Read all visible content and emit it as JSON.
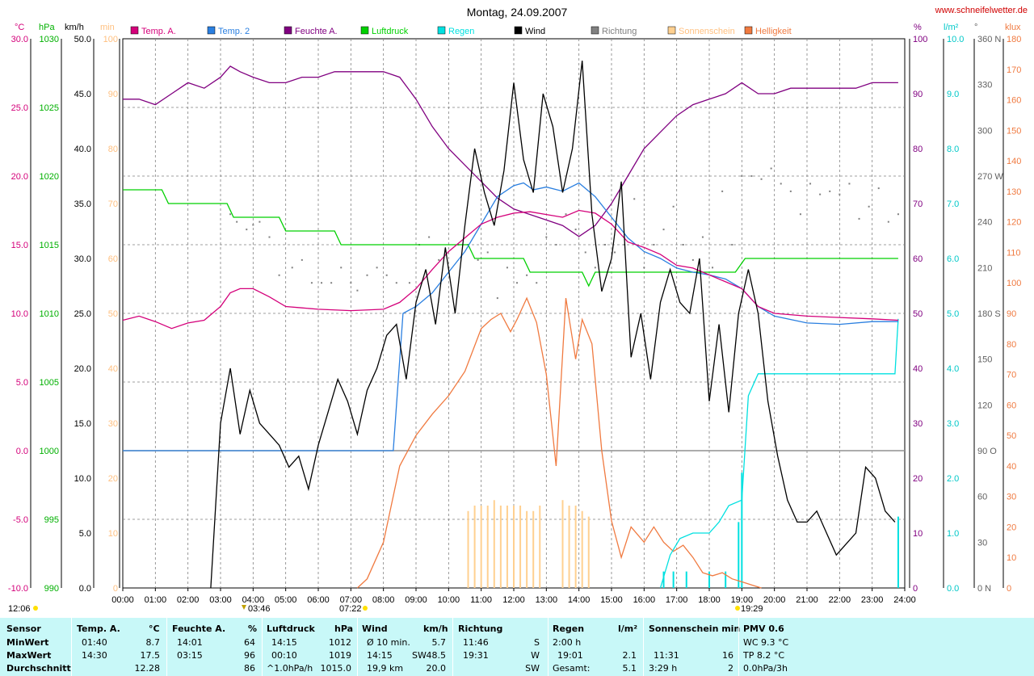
{
  "header": {
    "title": "Montag, 24.09.2007",
    "url": "www.schneifelwetter.de"
  },
  "axis_units": {
    "temp": "°C",
    "press": "hPa",
    "wind": "km/h",
    "min": "min",
    "pct": "%",
    "rain": "l/m²",
    "dir": "°",
    "lux": "klux"
  },
  "legend": [
    {
      "label": "Temp. A.",
      "color": "#d4007a"
    },
    {
      "label": "Temp. 2",
      "color": "#2a7fe0"
    },
    {
      "label": "Feuchte A.",
      "color": "#800080"
    },
    {
      "label": "Luftdruck",
      "color": "#00d000"
    },
    {
      "label": "Regen",
      "color": "#00e0e0"
    },
    {
      "label": "Wind",
      "color": "#000000"
    },
    {
      "label": "Richtung",
      "color": "#808080"
    },
    {
      "label": "Sonnenschein",
      "color": "#ffd090"
    },
    {
      "label": "Helligkeit",
      "color": "#f07a40"
    }
  ],
  "chart_data": {
    "type": "line",
    "title": "Montag, 24.09.2007",
    "x_ticks": [
      "00:00",
      "01:00",
      "02:00",
      "03:00",
      "04:00",
      "05:00",
      "06:00",
      "07:00",
      "08:00",
      "09:00",
      "10:00",
      "11:00",
      "12:00",
      "13:00",
      "14:00",
      "15:00",
      "16:00",
      "17:00",
      "18:00",
      "19:00",
      "20:00",
      "21:00",
      "22:00",
      "23:00",
      "24:00"
    ],
    "axes": {
      "temp": {
        "unit": "°C",
        "range": [
          -10,
          30
        ],
        "ticks": [
          "30.0",
          "25.0",
          "20.0",
          "15.0",
          "10.0",
          "5.0",
          "0.0",
          "-5.0",
          "-10.0"
        ]
      },
      "press": {
        "unit": "hPa",
        "range": [
          990,
          1030
        ],
        "ticks": [
          "1030",
          "1025",
          "1020",
          "1015",
          "1010",
          "1005",
          "1000",
          "995",
          "990"
        ]
      },
      "wind": {
        "unit": "km/h",
        "range": [
          0,
          50
        ],
        "ticks": [
          "50.0",
          "45.0",
          "40.0",
          "35.0",
          "30.0",
          "25.0",
          "20.0",
          "15.0",
          "10.0",
          "5.0",
          "0.0"
        ]
      },
      "minutes": {
        "unit": "min",
        "range": [
          0,
          100
        ],
        "ticks": [
          "100",
          "90",
          "80",
          "70",
          "60",
          "50",
          "40",
          "30",
          "20",
          "10",
          "0"
        ]
      },
      "humidity": {
        "unit": "%",
        "range": [
          0,
          100
        ],
        "ticks": [
          "100",
          "90",
          "80",
          "70",
          "60",
          "50",
          "40",
          "30",
          "20",
          "10",
          "0"
        ]
      },
      "rain": {
        "unit": "l/m²",
        "range": [
          0,
          10
        ],
        "ticks": [
          "10.0",
          "9.0",
          "8.0",
          "7.0",
          "6.0",
          "5.0",
          "4.0",
          "3.0",
          "2.0",
          "1.0",
          "0.0"
        ]
      },
      "direction": {
        "unit": "°",
        "range": [
          0,
          360
        ],
        "ticks": [
          "360 N",
          "330",
          "300",
          "270 W",
          "240",
          "210",
          "180 S",
          "150",
          "120",
          "90 O",
          "60",
          "30",
          "0 N"
        ]
      },
      "lux": {
        "unit": "klux",
        "range": [
          0,
          180
        ],
        "ticks": [
          "180",
          "170",
          "160",
          "150",
          "140",
          "130",
          "120",
          "110",
          "100",
          "90",
          "80",
          "70",
          "60",
          "50",
          "40",
          "30",
          "20",
          "10",
          "0"
        ]
      }
    },
    "series": [
      {
        "name": "Temp. A.",
        "axis": "temp",
        "color": "#d4007a",
        "x": [
          0,
          0.5,
          1,
          1.5,
          2,
          2.5,
          3,
          3.3,
          3.6,
          4,
          4.5,
          5,
          5.5,
          6,
          7,
          8,
          8.5,
          9,
          9.5,
          10,
          10.5,
          11,
          11.5,
          12,
          12.5,
          13,
          13.5,
          14,
          14.5,
          15,
          15.5,
          16,
          16.5,
          17,
          17.5,
          18,
          18.5,
          19,
          19.5,
          20,
          21,
          22,
          23,
          23.8
        ],
        "y": [
          9.5,
          9.8,
          9.4,
          8.9,
          9.3,
          9.5,
          10.5,
          11.5,
          11.8,
          11.8,
          11.2,
          10.5,
          10.4,
          10.3,
          10.2,
          10.3,
          10.8,
          11.8,
          13.2,
          14.5,
          15.5,
          16.5,
          17.0,
          17.3,
          17.4,
          17.2,
          17.0,
          17.5,
          17.3,
          16.5,
          15.2,
          14.8,
          14.3,
          13.5,
          13.3,
          12.8,
          12.3,
          11.8,
          10.5,
          10.0,
          9.8,
          9.7,
          9.6,
          9.5
        ]
      },
      {
        "name": "Temp. 2",
        "axis": "temp",
        "color": "#2a7fe0",
        "x": [
          0,
          8.3,
          8.6,
          9,
          9.5,
          10,
          10.5,
          11,
          11.5,
          12,
          12.3,
          12.6,
          13,
          13.5,
          14,
          14.5,
          15,
          15.5,
          16,
          16.5,
          17,
          17.5,
          18,
          18.5,
          19,
          19.5,
          20,
          21,
          22,
          23,
          23.8
        ],
        "y": [
          0,
          0,
          10,
          10.5,
          11.5,
          13,
          14.5,
          16.5,
          18.5,
          19.3,
          19.5,
          19.0,
          19.2,
          18.9,
          19.5,
          18.5,
          17.0,
          15.5,
          14.5,
          14.0,
          13.3,
          13.0,
          12.8,
          12.5,
          11.8,
          10.5,
          9.8,
          9.3,
          9.2,
          9.4,
          9.4
        ]
      },
      {
        "name": "Feuchte A.",
        "axis": "humidity",
        "color": "#800080",
        "x": [
          0,
          0.5,
          1,
          1.5,
          2,
          2.5,
          3,
          3.3,
          3.6,
          4,
          4.5,
          5,
          5.5,
          6,
          6.5,
          7,
          8,
          8.5,
          9,
          9.5,
          10,
          10.5,
          11,
          11.5,
          12,
          12.5,
          13,
          13.5,
          14,
          14.5,
          15,
          15.5,
          16,
          16.5,
          17,
          17.5,
          18,
          18.5,
          19,
          19.5,
          20,
          20.5,
          21,
          22,
          22.5,
          23,
          23.8
        ],
        "y": [
          89,
          89,
          88,
          90,
          92,
          91,
          93,
          95,
          94,
          93,
          92,
          92,
          93,
          93,
          94,
          94,
          94,
          93,
          89,
          84,
          80,
          77,
          74,
          71,
          69,
          68,
          67,
          66,
          64,
          66,
          70,
          75,
          80,
          83,
          86,
          88,
          89,
          90,
          92,
          90,
          90,
          91,
          91,
          91,
          91,
          92,
          92
        ]
      },
      {
        "name": "Luftdruck",
        "axis": "press",
        "color": "#00d000",
        "x": [
          0,
          1.2,
          1.4,
          3.2,
          3.4,
          4.8,
          5.0,
          6.5,
          6.7,
          10.6,
          10.8,
          12.3,
          12.5,
          14.1,
          14.3,
          14.5,
          18.8,
          19.1,
          23.8
        ],
        "y": [
          1019,
          1019,
          1018,
          1018,
          1017,
          1017,
          1016,
          1016,
          1015,
          1015,
          1014,
          1014,
          1013,
          1013,
          1012,
          1013,
          1013,
          1014,
          1014
        ]
      },
      {
        "name": "Wind",
        "axis": "wind",
        "color": "#000000",
        "x": [
          2.7,
          3.0,
          3.3,
          3.6,
          3.9,
          4.2,
          4.5,
          4.8,
          5.1,
          5.4,
          5.7,
          6.0,
          6.3,
          6.6,
          6.9,
          7.2,
          7.5,
          7.8,
          8.1,
          8.4,
          8.7,
          9.0,
          9.3,
          9.6,
          9.9,
          10.2,
          10.5,
          10.8,
          11.1,
          11.4,
          11.7,
          12.0,
          12.3,
          12.6,
          12.9,
          13.2,
          13.5,
          13.8,
          14.1,
          14.4,
          14.7,
          15.0,
          15.3,
          15.6,
          15.9,
          16.2,
          16.5,
          16.8,
          17.1,
          17.4,
          17.7,
          18.0,
          18.3,
          18.6,
          18.9,
          19.2,
          19.5,
          19.8,
          20.1,
          20.4,
          20.7,
          21.0,
          21.3,
          21.6,
          21.9,
          22.2,
          22.5,
          22.8,
          23.1,
          23.4,
          23.7
        ],
        "y": [
          0,
          15,
          20,
          14,
          18,
          15,
          14,
          13,
          11,
          12,
          9,
          13,
          16,
          19,
          17,
          14,
          18,
          20,
          23,
          24,
          19,
          26,
          29,
          24,
          31,
          25,
          33,
          40,
          36,
          33,
          38,
          46,
          39,
          36,
          45,
          42,
          36,
          40,
          48,
          34,
          27,
          30,
          37,
          21,
          25,
          19,
          26,
          29,
          26,
          25,
          30,
          17,
          24,
          16,
          25,
          29,
          25,
          17,
          12,
          8,
          6,
          6,
          7,
          5,
          3,
          4,
          5,
          11,
          10,
          7,
          6
        ]
      },
      {
        "name": "Sonnenschein",
        "axis": "minutes",
        "type": "bar",
        "color": "#ffd090",
        "x": [
          10.6,
          10.8,
          11.0,
          11.2,
          11.4,
          11.6,
          11.8,
          12.0,
          12.2,
          12.4,
          12.6,
          12.8,
          13.5,
          13.7,
          13.9,
          14.1,
          14.3
        ],
        "y": [
          14,
          15,
          15,
          15,
          16,
          15,
          15,
          15,
          15,
          14,
          14,
          15,
          16,
          15,
          15,
          14,
          13
        ]
      },
      {
        "name": "Helligkeit",
        "axis": "lux",
        "color": "#f07a40",
        "x": [
          7.2,
          7.5,
          8.0,
          8.5,
          9.0,
          9.5,
          10.0,
          10.5,
          11.0,
          11.3,
          11.6,
          11.9,
          12.1,
          12.4,
          12.7,
          13.0,
          13.3,
          13.6,
          13.9,
          14.1,
          14.4,
          14.7,
          15.0,
          15.3,
          15.6,
          16.0,
          16.3,
          16.6,
          16.9,
          17.2,
          17.5,
          17.8,
          18.1,
          18.4,
          18.7,
          19.0,
          19.3,
          19.6
        ],
        "y": [
          0,
          3,
          15,
          40,
          50,
          57,
          63,
          71,
          85,
          88,
          90,
          84,
          88,
          95,
          87,
          70,
          40,
          95,
          75,
          88,
          80,
          45,
          22,
          10,
          20,
          15,
          20,
          15,
          12,
          14,
          10,
          5,
          4,
          5,
          3,
          2,
          1,
          0
        ]
      },
      {
        "name": "Regen",
        "axis": "rain",
        "color": "#00e0e0",
        "x": [
          16.5,
          16.8,
          17.1,
          17.5,
          18.0,
          18.3,
          18.6,
          19.0,
          19.2,
          19.5,
          20.0,
          21.0,
          22.0,
          23.0,
          23.7,
          23.8
        ],
        "y": [
          0,
          0.6,
          0.9,
          1.0,
          1.0,
          1.2,
          1.5,
          1.6,
          3.5,
          3.9,
          3.9,
          3.9,
          3.9,
          3.9,
          3.9,
          4.9
        ]
      },
      {
        "name": "Regen Balken",
        "axis": "rain",
        "type": "bar",
        "color": "#00e0e0",
        "x": [
          16.6,
          16.9,
          17.3,
          18.0,
          18.5,
          18.9,
          19.0,
          23.8
        ],
        "y": [
          0.3,
          0.3,
          0.3,
          0.3,
          0.3,
          1.2,
          2.1,
          1.3
        ]
      },
      {
        "name": "Richtung",
        "axis": "direction",
        "type": "scatter",
        "color": "#808080",
        "x": [
          3.3,
          3.5,
          3.8,
          4.0,
          4.2,
          4.5,
          4.8,
          5.2,
          5.5,
          5.8,
          6.1,
          6.4,
          6.7,
          7.0,
          7.2,
          7.5,
          7.8,
          8.1,
          8.4,
          8.8,
          9.1,
          9.4,
          9.7,
          10.0,
          10.3,
          10.6,
          10.9,
          11.2,
          11.5,
          11.8,
          12.1,
          12.4,
          12.7,
          13.0,
          13.3,
          13.6,
          13.9,
          14.2,
          14.5,
          14.8,
          15.1,
          15.4,
          15.7,
          16.0,
          16.3,
          16.6,
          16.9,
          17.2,
          17.5,
          17.8,
          18.1,
          18.4,
          18.7,
          19.0,
          19.3,
          19.6,
          19.9,
          20.2,
          20.5,
          20.8,
          21.1,
          21.4,
          21.7,
          22.0,
          22.3,
          22.6,
          22.9,
          23.2,
          23.5,
          23.8
        ],
        "y": [
          245,
          240,
          235,
          238,
          240,
          230,
          205,
          210,
          215,
          200,
          200,
          200,
          210,
          200,
          195,
          205,
          210,
          205,
          200,
          200,
          225,
          230,
          215,
          210,
          225,
          225,
          215,
          220,
          190,
          210,
          200,
          205,
          200,
          230,
          225,
          245,
          235,
          220,
          210,
          225,
          220,
          225,
          255,
          210,
          225,
          235,
          250,
          225,
          215,
          230,
          210,
          260,
          225,
          270,
          270,
          268,
          275,
          265,
          260,
          245,
          265,
          258,
          260,
          258,
          265,
          242,
          250,
          262,
          240,
          245
        ]
      }
    ]
  },
  "sun_marks": {
    "left": "12:06",
    "rise_dir": "03:46",
    "rise": "07:22",
    "set": "19:29"
  },
  "table": {
    "row_labels": [
      "Sensor",
      "MinWert",
      "MaxWert",
      "Durchschnitt"
    ],
    "temp": {
      "head": "Temp. A.",
      "unit": "°C",
      "min_t": "01:40",
      "min_v": "8.7",
      "max_t": "14:30",
      "max_v": "17.5",
      "avg": "12.28"
    },
    "hum": {
      "head": "Feuchte A.",
      "unit": "%",
      "min_t": "14:01",
      "min_v": "64",
      "max_t": "03:15",
      "max_v": "96",
      "avg": "86"
    },
    "press": {
      "head": "Luftdruck",
      "unit": "hPa",
      "min_t": "14:15",
      "min_v": "1012",
      "max_t": "00:10",
      "max_v": "1019",
      "trend": "^1.0hPa/h",
      "avg": "1015.0"
    },
    "wind": {
      "head": "Wind",
      "unit": "km/h",
      "min_t": "Ø 10 min.",
      "min_v": "5.7",
      "max_t": "14:15",
      "max_dir": "SW",
      "max_v": "48.5",
      "dist": "19,9 km",
      "avg": "20.0"
    },
    "dir": {
      "head": "Richtung",
      "min_t": "11:46",
      "min_v": "S",
      "max_t": "19:31",
      "max_v": "W",
      "avg": "SW"
    },
    "rain": {
      "head": "Regen",
      "unit": "l/m²",
      "min_t": "2:00 h",
      "max_t": "19:01",
      "max_v": "2.1",
      "total_label": "Gesamt:",
      "total": "5.1"
    },
    "sun": {
      "head": "Sonnenschein min",
      "max_t": "11:31",
      "max_v": "16",
      "dur": "3:29 h",
      "avg": "2"
    },
    "pmv": {
      "head": "PMV 0.6",
      "wc": "WC 9.3 °C",
      "tp": "TP 8.2 °C",
      "trend": "0.0hPa/3h"
    }
  }
}
